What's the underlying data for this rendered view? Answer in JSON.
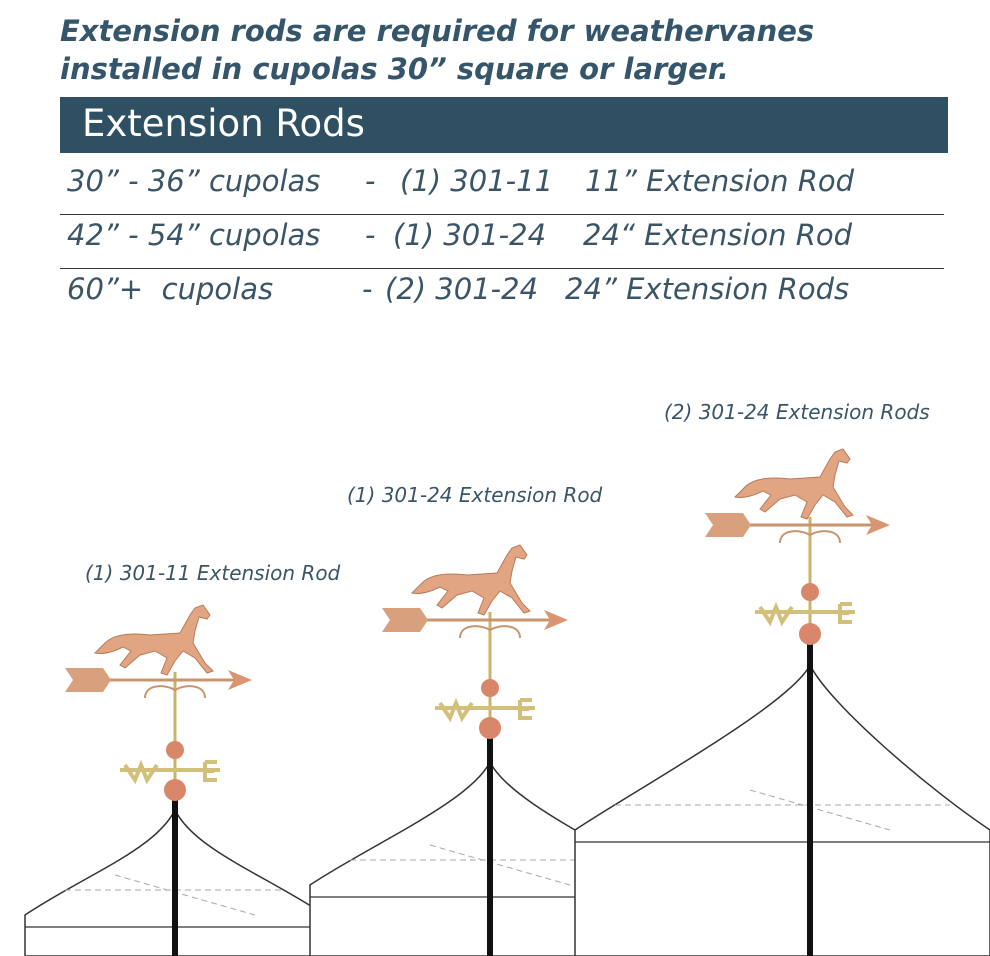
{
  "intro": {
    "lines": [
      "Extension rods are required for weathervanes",
      "installed in cupolas 30” square or larger."
    ]
  },
  "table": {
    "title": "Extension Rods",
    "rows": [
      [
        "30” - 36” cupolas",
        "-",
        "(1) 301-11",
        "11” Extension Rod"
      ],
      [
        "42” - 54” cupolas",
        "-",
        "(1) 301-24",
        "24“ Extension Rod"
      ],
      [
        "60”+  cupolas",
        "-",
        "(2) 301-24",
        "24” Extension Rods"
      ]
    ]
  },
  "illustrations": [
    {
      "caption": "(1) 301-11 Extension Rod"
    },
    {
      "caption": "(1) 301-24 Extension Rod"
    },
    {
      "caption": "(2) 301-24 Extension Rods"
    }
  ]
}
